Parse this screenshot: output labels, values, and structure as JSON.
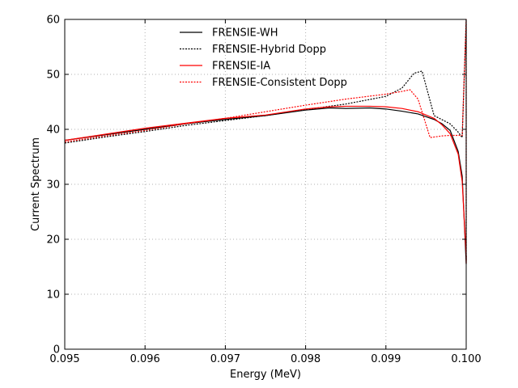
{
  "chart_data": {
    "type": "line",
    "title": "",
    "xlabel": "Energy (MeV)",
    "ylabel": "Current Spectrum",
    "xlim": [
      0.095,
      0.1
    ],
    "ylim": [
      0,
      60
    ],
    "xticks": [
      0.095,
      0.096,
      0.097,
      0.098,
      0.099,
      0.1
    ],
    "xtick_labels": [
      "0.095",
      "0.096",
      "0.097",
      "0.098",
      "0.099",
      "0.100"
    ],
    "yticks": [
      0,
      10,
      20,
      30,
      40,
      50,
      60
    ],
    "ytick_labels": [
      "0",
      "10",
      "20",
      "30",
      "40",
      "50",
      "60"
    ],
    "grid": true,
    "legend_position": "top-center",
    "series": [
      {
        "name": "FRENSIE-WH",
        "color": "#000000",
        "dash": "solid",
        "x": [
          0.095,
          0.0955,
          0.096,
          0.0965,
          0.097,
          0.0975,
          0.098,
          0.0983,
          0.0985,
          0.0988,
          0.099,
          0.0992,
          0.0994,
          0.0996,
          0.0997,
          0.0998,
          0.0999,
          0.09995,
          0.1,
          0.1
        ],
        "y": [
          38.0,
          39.0,
          40.0,
          41.0,
          41.8,
          42.5,
          43.5,
          43.9,
          43.8,
          43.9,
          43.7,
          43.3,
          42.8,
          41.8,
          41.0,
          39.8,
          36.0,
          31.5,
          15.5,
          17.0
        ]
      },
      {
        "name": "FRENSIE-Hybrid Dopp",
        "color": "#000000",
        "dash": "dotted",
        "x": [
          0.095,
          0.0955,
          0.096,
          0.0965,
          0.097,
          0.0975,
          0.098,
          0.0985,
          0.099,
          0.0992,
          0.09935,
          0.09945,
          0.0996,
          0.0998,
          0.0999,
          0.09995,
          0.1,
          0.1
        ],
        "y": [
          37.5,
          38.6,
          39.6,
          40.7,
          41.6,
          42.5,
          43.6,
          44.6,
          46.0,
          47.5,
          50.2,
          50.6,
          42.5,
          41.0,
          39.5,
          38.5,
          60.0,
          16.0
        ]
      },
      {
        "name": "FRENSIE-IA",
        "color": "#ff0000",
        "dash": "solid",
        "x": [
          0.095,
          0.0955,
          0.096,
          0.0965,
          0.097,
          0.0975,
          0.098,
          0.0983,
          0.0985,
          0.0988,
          0.099,
          0.0992,
          0.0994,
          0.0996,
          0.0997,
          0.0998,
          0.0999,
          0.09995,
          0.1,
          0.1
        ],
        "y": [
          38.0,
          39.1,
          40.2,
          41.1,
          42.0,
          42.6,
          43.7,
          44.1,
          44.2,
          44.2,
          44.1,
          43.8,
          43.2,
          42.0,
          40.8,
          39.2,
          35.5,
          30.5,
          17.0,
          15.8
        ]
      },
      {
        "name": "FRENSIE-Consistent Dopp",
        "color": "#ff0000",
        "dash": "dotted",
        "x": [
          0.095,
          0.0955,
          0.096,
          0.0965,
          0.097,
          0.0975,
          0.098,
          0.0985,
          0.099,
          0.0992,
          0.0993,
          0.0994,
          0.09955,
          0.0997,
          0.0998,
          0.09995,
          0.1,
          0.1
        ],
        "y": [
          37.7,
          38.8,
          39.8,
          41.0,
          42.0,
          43.2,
          44.4,
          45.5,
          46.4,
          46.9,
          47.2,
          45.5,
          38.5,
          38.8,
          38.9,
          38.9,
          60.0,
          15.5
        ]
      }
    ]
  }
}
